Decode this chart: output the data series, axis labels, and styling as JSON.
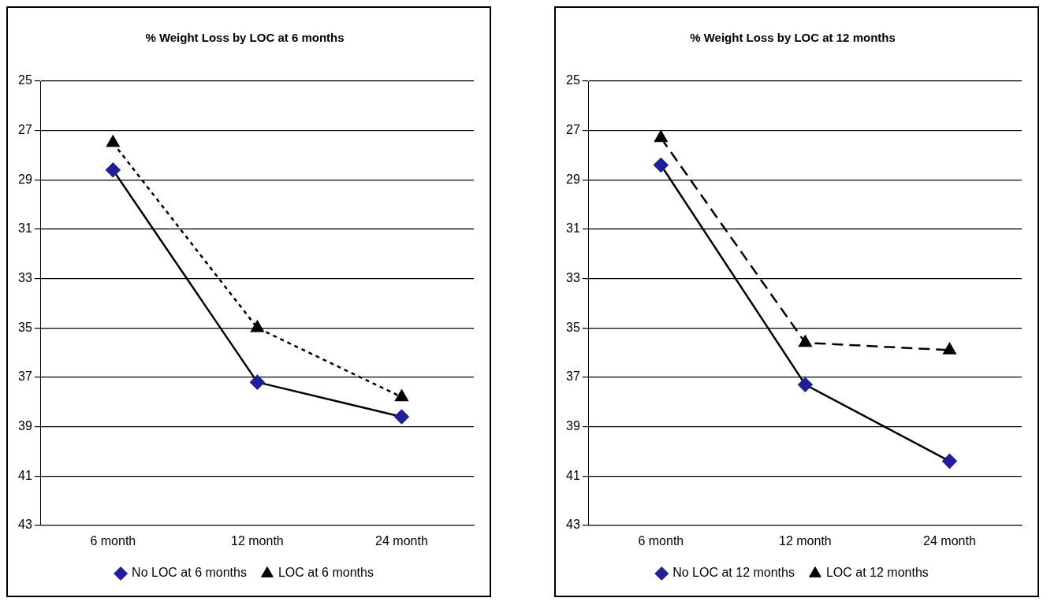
{
  "chart_data": [
    {
      "type": "line",
      "title": "% Weight Loss by LOC at 6 months",
      "categories": [
        "6 month",
        "12 month",
        "24 month"
      ],
      "ylim": [
        43,
        25
      ],
      "yticks": [
        25,
        27,
        29,
        31,
        33,
        35,
        37,
        39,
        41,
        43
      ],
      "grid": "y",
      "legend": "bottom",
      "series": [
        {
          "name": "No LOC at 6 months",
          "color": "#1f1f99",
          "values": [
            28.6,
            37.2,
            38.6
          ],
          "marker": "diamond",
          "line_style": "solid"
        },
        {
          "name": "LOC at 6 months",
          "color": "#000000",
          "values": [
            27.5,
            35.0,
            37.8
          ],
          "marker": "triangle",
          "line_style": "dotted"
        }
      ]
    },
    {
      "type": "line",
      "title": "% Weight Loss by LOC at 12 months",
      "categories": [
        "6 month",
        "12 month",
        "24 month"
      ],
      "ylim": [
        43,
        25
      ],
      "yticks": [
        25,
        27,
        29,
        31,
        33,
        35,
        37,
        39,
        41,
        43
      ],
      "grid": "y",
      "legend": "bottom",
      "series": [
        {
          "name": "No LOC at 12 months",
          "color": "#1f1f99",
          "values": [
            28.4,
            37.3,
            40.4
          ],
          "marker": "diamond",
          "line_style": "solid"
        },
        {
          "name": "LOC at 12 months",
          "color": "#000000",
          "values": [
            27.3,
            35.6,
            35.9
          ],
          "marker": "triangle",
          "line_style": "dashed"
        }
      ]
    }
  ]
}
